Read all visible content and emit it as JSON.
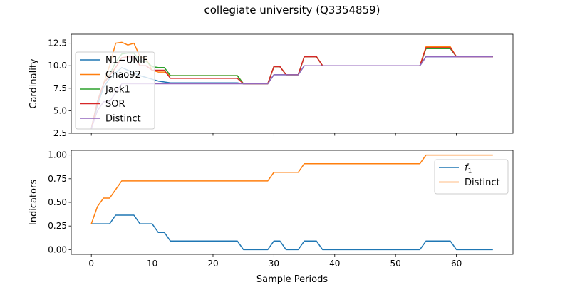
{
  "figure_title": "collegiate university (Q3354859)",
  "chart_data": [
    {
      "type": "line",
      "title": "",
      "xlabel": "",
      "ylabel": "Cardinality",
      "xlim": [
        -3.3,
        69.3
      ],
      "ylim": [
        2.5,
        13.5
      ],
      "yticks": [
        2.5,
        5.0,
        7.5,
        10.0,
        12.5
      ],
      "ytick_labels": [
        "2.5",
        "5.0",
        "7.5",
        "10.0",
        "12.5"
      ],
      "xticks": [
        0,
        10,
        20,
        30,
        40,
        50,
        60
      ],
      "show_xtick_labels": false,
      "legend_position": "upper-left",
      "series": [
        {
          "name": "N1−UNIF",
          "color": "#1f77b4",
          "x": [
            0,
            1,
            2,
            3,
            4,
            5,
            6,
            7,
            8,
            9,
            10,
            11,
            12,
            13,
            24,
            25,
            29,
            30,
            31,
            32,
            34,
            35,
            37,
            38,
            54,
            55,
            59,
            60,
            66
          ],
          "y": [
            3,
            5.6,
            7.6,
            8.6,
            9.2,
            9.8,
            9.5,
            9.2,
            8.9,
            8.7,
            8.5,
            8.3,
            8.2,
            8.1,
            8.1,
            8,
            8,
            9,
            9,
            9,
            9,
            10,
            10,
            10,
            10,
            11,
            11,
            11,
            11
          ]
        },
        {
          "name": "Chao92",
          "color": "#ff7f0e",
          "x": [
            0,
            1,
            2,
            3,
            4,
            5,
            6,
            7,
            8,
            9,
            10,
            11,
            12,
            13,
            24,
            25,
            29,
            30,
            31,
            32,
            34,
            35,
            37,
            38,
            54,
            55,
            59,
            60,
            66
          ],
          "y": [
            3,
            6,
            8,
            10,
            12.5,
            12.6,
            12.3,
            12.5,
            11.0,
            10.8,
            9.5,
            9.3,
            9.3,
            8.9,
            8.9,
            8,
            8,
            9.9,
            9.9,
            9,
            9,
            11,
            11,
            10,
            10,
            12.1,
            12.1,
            11,
            11
          ]
        },
        {
          "name": "Jack1",
          "color": "#2ca02c",
          "x": [
            0,
            1,
            2,
            3,
            4,
            5,
            6,
            7,
            8,
            9,
            10,
            11,
            12,
            13,
            24,
            25,
            29,
            30,
            31,
            32,
            34,
            35,
            37,
            38,
            54,
            55,
            59,
            60,
            66
          ],
          "y": [
            3,
            6,
            8,
            9,
            10.4,
            11.3,
            11.4,
            11.4,
            10.5,
            10.5,
            9.9,
            9.8,
            9.8,
            8.9,
            8.9,
            8,
            8,
            9.9,
            9.9,
            9,
            9,
            11,
            11,
            10,
            10,
            11.9,
            11.9,
            11,
            11
          ]
        },
        {
          "name": "SOR",
          "color": "#d62728",
          "x": [
            0,
            1,
            2,
            3,
            4,
            5,
            6,
            7,
            8,
            9,
            10,
            11,
            12,
            13,
            24,
            25,
            29,
            30,
            31,
            32,
            34,
            35,
            37,
            38,
            54,
            55,
            59,
            60,
            66
          ],
          "y": [
            3,
            6,
            8,
            8.9,
            9.8,
            10.9,
            11.0,
            11.0,
            10.0,
            10.0,
            9.5,
            9.5,
            9.5,
            8.6,
            8.6,
            8,
            8,
            9.9,
            9.9,
            9,
            9,
            11,
            11,
            10,
            10,
            12.0,
            12.0,
            11,
            11
          ]
        },
        {
          "name": "Distinct",
          "color": "#9467bd",
          "x": [
            0,
            1,
            2,
            3,
            4,
            5,
            6,
            7,
            8,
            9,
            10,
            11,
            12,
            13,
            24,
            25,
            29,
            30,
            31,
            32,
            34,
            35,
            37,
            38,
            54,
            55,
            59,
            60,
            66
          ],
          "y": [
            3,
            5,
            6,
            6,
            7,
            8,
            8,
            8,
            8,
            8,
            8,
            8,
            8,
            8,
            8,
            8,
            8,
            9,
            9,
            9,
            9,
            10,
            10,
            10,
            10,
            11,
            11,
            11,
            11
          ]
        }
      ]
    },
    {
      "type": "line",
      "title": "",
      "xlabel": "Sample Periods",
      "ylabel": "Indicators",
      "xlim": [
        -3.3,
        69.3
      ],
      "ylim": [
        -0.05,
        1.05
      ],
      "yticks": [
        0.0,
        0.25,
        0.5,
        0.75,
        1.0
      ],
      "ytick_labels": [
        "0.00",
        "0.25",
        "0.50",
        "0.75",
        "1.00"
      ],
      "xticks": [
        0,
        10,
        20,
        30,
        40,
        50,
        60
      ],
      "xtick_labels": [
        "0",
        "10",
        "20",
        "30",
        "40",
        "50",
        "60"
      ],
      "legend_position": "upper-right",
      "series": [
        {
          "name": "f",
          "name_subscript": "1",
          "color": "#1f77b4",
          "x": [
            0,
            1,
            2,
            3,
            4,
            5,
            6,
            7,
            8,
            9,
            10,
            11,
            12,
            13,
            24,
            25,
            29,
            30,
            31,
            32,
            34,
            35,
            37,
            38,
            54,
            55,
            59,
            60,
            66
          ],
          "y": [
            0.273,
            0.273,
            0.273,
            0.273,
            0.364,
            0.364,
            0.364,
            0.364,
            0.273,
            0.273,
            0.273,
            0.182,
            0.182,
            0.091,
            0.091,
            0,
            0,
            0.091,
            0.091,
            0,
            0,
            0.091,
            0.091,
            0,
            0,
            0.091,
            0.091,
            0,
            0
          ]
        },
        {
          "name": "Distinct",
          "color": "#ff7f0e",
          "x": [
            0,
            1,
            2,
            3,
            4,
            5,
            6,
            7,
            8,
            9,
            10,
            11,
            12,
            13,
            24,
            25,
            29,
            30,
            31,
            32,
            34,
            35,
            37,
            38,
            54,
            55,
            59,
            60,
            66
          ],
          "y": [
            0.273,
            0.455,
            0.545,
            0.545,
            0.636,
            0.727,
            0.727,
            0.727,
            0.727,
            0.727,
            0.727,
            0.727,
            0.727,
            0.727,
            0.727,
            0.727,
            0.727,
            0.818,
            0.818,
            0.818,
            0.818,
            0.909,
            0.909,
            0.909,
            0.909,
            1,
            1,
            1,
            1
          ]
        }
      ]
    }
  ]
}
